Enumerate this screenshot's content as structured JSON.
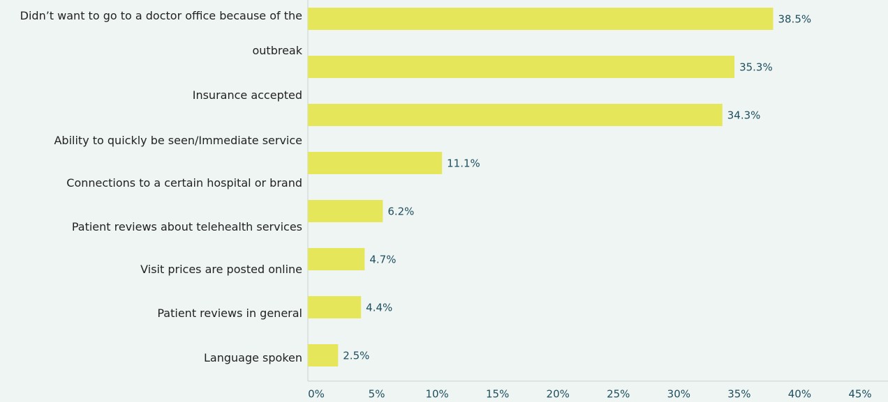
{
  "chart_data": {
    "type": "bar",
    "orientation": "horizontal",
    "categories": [
      "Didn’t want to go to a doctor office because of the outbreak",
      "Insurance accepted",
      "Ability to quickly be seen/Immediate service",
      "Connections to a certain hospital or brand",
      "Patient reviews about telehealth services",
      "Visit prices are posted online",
      "Patient reviews in general",
      "Language spoken"
    ],
    "values": [
      38.5,
      35.3,
      34.3,
      11.1,
      6.2,
      4.7,
      4.4,
      2.5
    ],
    "value_labels": [
      "38.5%",
      "35.3%",
      "34.3%",
      "11.1%",
      "6.2%",
      "4.7%",
      "4.4%",
      "2.5%"
    ],
    "color": "#e6e65a",
    "xlim": [
      0,
      45
    ],
    "xticks": [
      {
        "value": 0,
        "label": "0%"
      },
      {
        "value": 5,
        "label": "5%"
      },
      {
        "value": 10,
        "label": "10%"
      },
      {
        "value": 15,
        "label": "15%"
      },
      {
        "value": 20,
        "label": "20%"
      },
      {
        "value": 25,
        "label": "25%"
      },
      {
        "value": 30,
        "label": "30%"
      },
      {
        "value": 35,
        "label": "35%"
      },
      {
        "value": 40,
        "label": "40%"
      },
      {
        "value": 45,
        "label": "45%"
      }
    ],
    "grid": false
  }
}
